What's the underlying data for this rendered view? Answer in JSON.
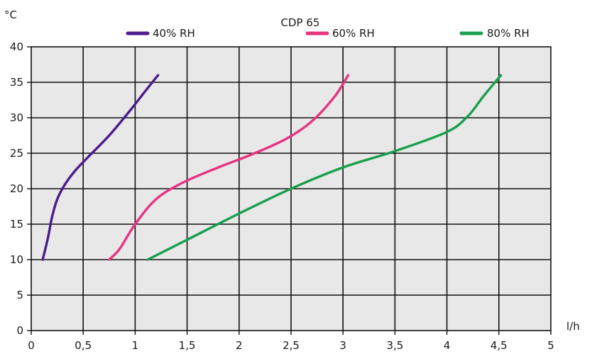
{
  "chart_data": {
    "type": "line",
    "title": "CDP 65",
    "xlabel": "l/h",
    "ylabel": "°C",
    "xlim": [
      0,
      5
    ],
    "ylim": [
      0,
      40
    ],
    "x_ticks": [
      "0",
      "0,5",
      "1",
      "1,5",
      "2",
      "2,5",
      "3",
      "3,5",
      "4",
      "4,5",
      "5"
    ],
    "y_ticks": [
      "0",
      "5",
      "10",
      "15",
      "20",
      "25",
      "30",
      "35",
      "40"
    ],
    "grid": true,
    "legend_position": "top",
    "series": [
      {
        "name": "40% RH",
        "color": "#4b1c8c",
        "points": [
          [
            0.11,
            10
          ],
          [
            0.16,
            13
          ],
          [
            0.2,
            16
          ],
          [
            0.25,
            18.5
          ],
          [
            0.32,
            20.5
          ],
          [
            0.42,
            22.5
          ],
          [
            0.55,
            24.5
          ],
          [
            0.75,
            27.5
          ],
          [
            0.95,
            31
          ],
          [
            1.1,
            33.8
          ],
          [
            1.22,
            36
          ]
        ]
      },
      {
        "name": "60% RH",
        "color": "#e6337f",
        "points": [
          [
            0.75,
            10
          ],
          [
            0.85,
            11.5
          ],
          [
            1.0,
            15
          ],
          [
            1.2,
            18.5
          ],
          [
            1.45,
            20.8
          ],
          [
            1.8,
            23
          ],
          [
            2.1,
            24.7
          ],
          [
            2.45,
            27
          ],
          [
            2.7,
            29.5
          ],
          [
            2.92,
            33
          ],
          [
            3.05,
            36
          ]
        ]
      },
      {
        "name": "80% RH",
        "color": "#18a04a",
        "points": [
          [
            1.12,
            10
          ],
          [
            1.5,
            12.8
          ],
          [
            2.0,
            16.5
          ],
          [
            2.5,
            20
          ],
          [
            3.0,
            23
          ],
          [
            3.5,
            25.3
          ],
          [
            4.0,
            28
          ],
          [
            4.2,
            30.2
          ],
          [
            4.35,
            33
          ],
          [
            4.52,
            36
          ]
        ]
      }
    ]
  }
}
